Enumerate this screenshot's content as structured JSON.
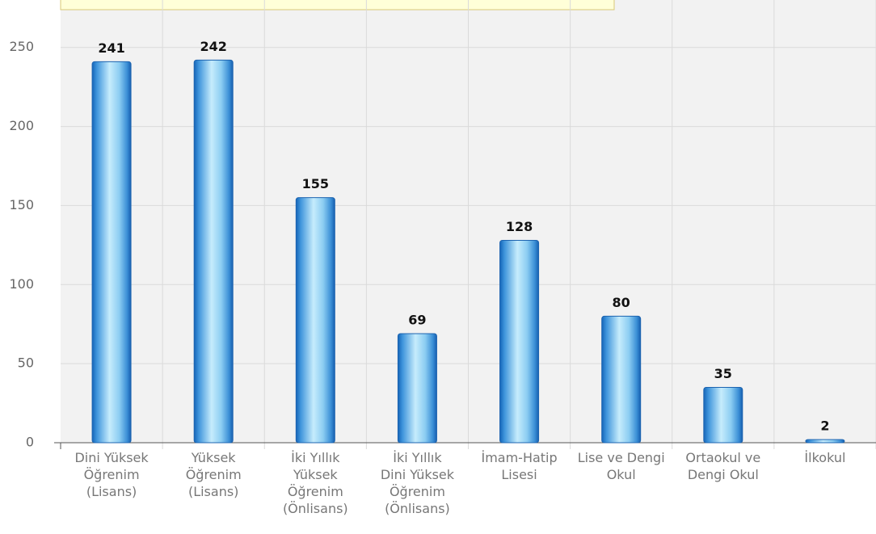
{
  "chart_data": {
    "type": "bar",
    "categories": [
      "Dini Yüksek\nÖğrenim\n(Lisans)",
      "Yüksek\nÖğrenim\n(Lisans)",
      "İki Yıllık\nYüksek\nÖğrenim\n(Önlisans)",
      "İki Yıllık\nDini Yüksek\nÖğrenim\n(Önlisans)",
      "İmam-Hatip\nLisesi",
      "Lise ve Dengi\nOkul",
      "Ortaokul ve\nDengi Okul",
      "İlkokul"
    ],
    "values": [
      241,
      242,
      155,
      69,
      128,
      80,
      35,
      2
    ],
    "color": "#3a8fd8",
    "ylim": [
      0,
      280
    ],
    "yticks": [
      0,
      50,
      100,
      150,
      200,
      250
    ],
    "grid": true
  }
}
